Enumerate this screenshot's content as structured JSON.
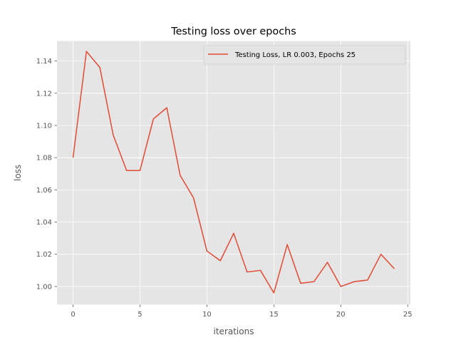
{
  "chart_data": {
    "type": "line",
    "title": "Testing loss over epochs",
    "xlabel": "iterations",
    "ylabel": "loss",
    "xlim": [
      -1.2,
      25.2
    ],
    "ylim": [
      0.9888,
      1.1524
    ],
    "xticks": [
      0,
      5,
      10,
      15,
      20,
      25
    ],
    "xtick_labels": [
      "0",
      "5",
      "10",
      "15",
      "20",
      "25"
    ],
    "yticks": [
      1.0,
      1.02,
      1.04,
      1.06,
      1.08,
      1.1,
      1.12,
      1.14
    ],
    "ytick_labels": [
      "1.00",
      "1.02",
      "1.04",
      "1.06",
      "1.08",
      "1.10",
      "1.12",
      "1.14"
    ],
    "grid": true,
    "legend_position": "top-right",
    "series": [
      {
        "name": "Testing Loss, LR 0.003, Epochs 25",
        "color": "#E24A33",
        "x": [
          0,
          1,
          2,
          3,
          4,
          5,
          6,
          7,
          8,
          9,
          10,
          11,
          12,
          13,
          14,
          15,
          16,
          17,
          18,
          19,
          20,
          21,
          22,
          23,
          24
        ],
        "y": [
          1.08,
          1.146,
          1.136,
          1.094,
          1.072,
          1.072,
          1.104,
          1.111,
          1.069,
          1.055,
          1.022,
          1.016,
          1.033,
          1.009,
          1.01,
          0.996,
          1.026,
          1.002,
          1.003,
          1.015,
          1.0,
          1.003,
          1.004,
          1.02,
          1.011
        ]
      }
    ]
  }
}
